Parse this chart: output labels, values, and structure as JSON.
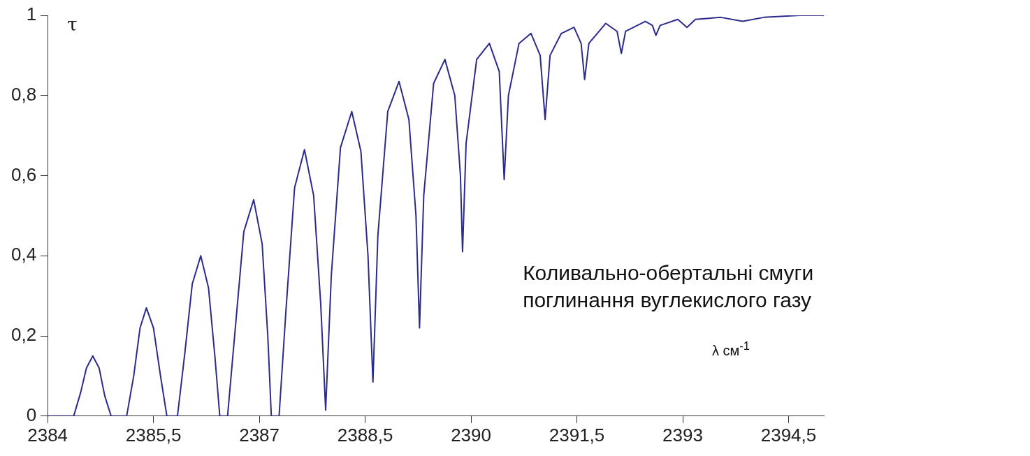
{
  "chart_data": {
    "type": "line",
    "ylabel": "τ",
    "xlabel": "λ  см$^{-1}$",
    "annotations": [
      "Коливально-обертальні смуги поглинання вуглекислого газу"
    ],
    "xlim": [
      2384,
      2395
    ],
    "xticks": [
      2384,
      {
        "value": 2385.5,
        "label": "2385,5"
      },
      2387,
      {
        "value": 2388.5,
        "label": "2388,5"
      },
      2390,
      {
        "value": 2391.5,
        "label": "2391,5"
      },
      2393,
      {
        "value": 2394.5,
        "label": "2394,5"
      }
    ],
    "ylim": [
      0,
      1
    ],
    "yticks": [
      0,
      {
        "value": 0.2,
        "label": "0,2"
      },
      {
        "value": 0.4,
        "label": "0,4"
      },
      {
        "value": 0.6,
        "label": "0,6"
      },
      {
        "value": 0.8,
        "label": "0,8"
      },
      1
    ],
    "marker": "none",
    "line_style": "solid",
    "legend": false,
    "series": [
      {
        "color": "#2b2b8c",
        "x": [
          2384,
          2384.37,
          2384.47,
          2384.55,
          2384.64,
          2384.73,
          2384.81,
          2384.9,
          2385.12,
          2385.22,
          2385.31,
          2385.4,
          2385.5,
          2385.6,
          2385.69,
          2385.84,
          2385.94,
          2386.05,
          2386.17,
          2386.28,
          2386.37,
          2386.44,
          2386.55,
          2386.65,
          2386.78,
          2386.92,
          2387.04,
          2387.12,
          2387.17,
          2387.28,
          2387.38,
          2387.5,
          2387.64,
          2387.77,
          2387.87,
          2387.94,
          2388.02,
          2388.15,
          2388.31,
          2388.44,
          2388.54,
          2388.61,
          2388.68,
          2388.82,
          2388.98,
          2389.12,
          2389.22,
          2389.27,
          2389.33,
          2389.47,
          2389.63,
          2389.77,
          2389.85,
          2389.88,
          2389.93,
          2390.08,
          2390.26,
          2390.4,
          2390.47,
          2390.53,
          2390.68,
          2390.85,
          2390.98,
          2391.05,
          2391.12,
          2391.28,
          2391.46,
          2391.56,
          2391.61,
          2391.67,
          2391.91,
          2392.07,
          2392.13,
          2392.19,
          2392.47,
          2392.57,
          2392.62,
          2392.68,
          2392.93,
          2393.06,
          2393.18,
          2393.54,
          2393.85,
          2394.15,
          2394.66,
          2395
        ],
        "values": [
          0,
          0,
          0.06,
          0.12,
          0.15,
          0.12,
          0.05,
          0,
          0,
          0.1,
          0.22,
          0.27,
          0.22,
          0.1,
          0,
          0,
          0.15,
          0.33,
          0.4,
          0.32,
          0.15,
          0,
          0,
          0.2,
          0.46,
          0.54,
          0.43,
          0.2,
          0,
          0,
          0.27,
          0.57,
          0.665,
          0.55,
          0.28,
          0.015,
          0.35,
          0.67,
          0.76,
          0.66,
          0.4,
          0.085,
          0.45,
          0.76,
          0.835,
          0.74,
          0.5,
          0.22,
          0.55,
          0.83,
          0.89,
          0.8,
          0.6,
          0.41,
          0.68,
          0.89,
          0.93,
          0.86,
          0.59,
          0.8,
          0.93,
          0.955,
          0.9,
          0.74,
          0.9,
          0.955,
          0.97,
          0.93,
          0.84,
          0.93,
          0.98,
          0.96,
          0.905,
          0.96,
          0.985,
          0.975,
          0.95,
          0.975,
          0.99,
          0.97,
          0.99,
          0.995,
          0.985,
          0.995,
          1,
          1
        ]
      }
    ]
  }
}
